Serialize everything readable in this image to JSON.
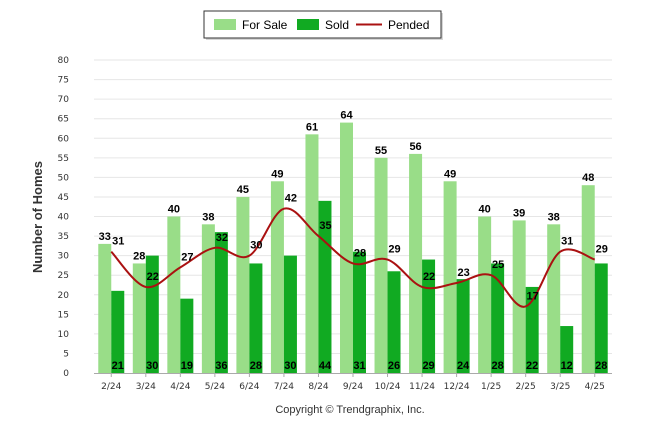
{
  "chart_data": {
    "type": "bar",
    "title": "",
    "xlabel": "",
    "ylabel": "Number of Homes",
    "ylim": [
      0,
      80
    ],
    "yticks": [
      0,
      5,
      10,
      15,
      20,
      25,
      30,
      35,
      40,
      45,
      50,
      55,
      60,
      65,
      70,
      75,
      80
    ],
    "grid": true,
    "legend_position": "top-center",
    "categories": [
      "2/24",
      "3/24",
      "4/24",
      "5/24",
      "6/24",
      "7/24",
      "8/24",
      "9/24",
      "10/24",
      "11/24",
      "12/24",
      "1/25",
      "2/25",
      "3/25",
      "4/25"
    ],
    "series": [
      {
        "name": "For Sale",
        "type": "bar",
        "color": "#99dd88",
        "values": [
          33,
          28,
          40,
          38,
          45,
          49,
          61,
          64,
          55,
          56,
          49,
          40,
          39,
          38,
          48
        ]
      },
      {
        "name": "Sold",
        "type": "bar",
        "color": "#11aa22",
        "values": [
          21,
          30,
          19,
          36,
          28,
          30,
          44,
          31,
          26,
          29,
          24,
          28,
          22,
          12,
          28
        ]
      },
      {
        "name": "Pended",
        "type": "line",
        "color": "#aa1111",
        "values": [
          31,
          22,
          27,
          32,
          30,
          42,
          35,
          28,
          29,
          22,
          23,
          25,
          17,
          31,
          29
        ]
      }
    ]
  },
  "footer": {
    "copyright": "Copyright © Trendgraphix, Inc."
  }
}
